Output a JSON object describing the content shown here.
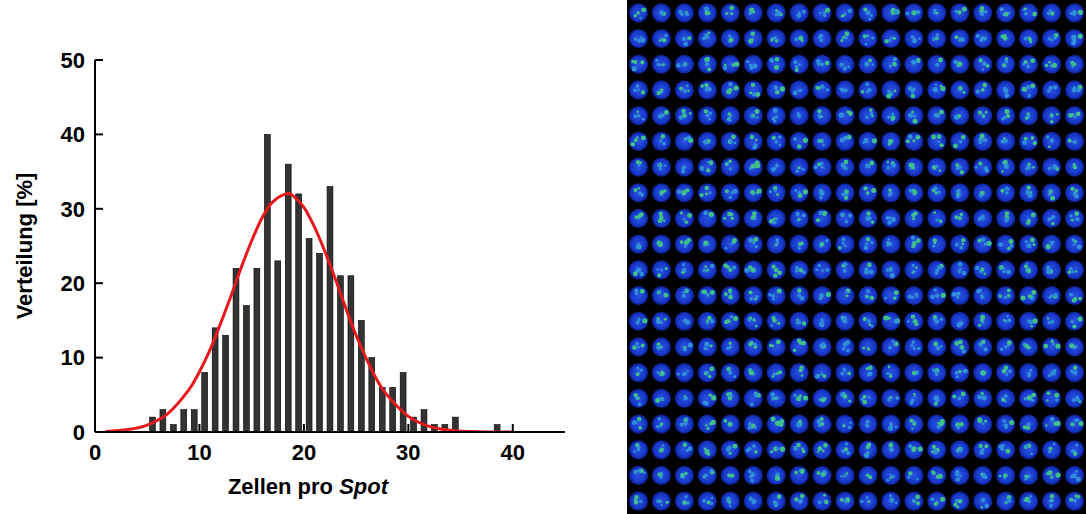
{
  "chart_data": {
    "type": "histogram",
    "x_label": "Zellen pro Spot",
    "y_label": "Verteilung [%]",
    "bins": [
      5,
      6,
      7,
      8,
      9,
      10,
      11,
      12,
      13,
      14,
      15,
      16,
      17,
      18,
      19,
      20,
      21,
      22,
      23,
      24,
      25,
      26,
      27,
      28,
      29,
      30,
      31,
      32,
      33,
      34,
      35,
      36,
      37,
      38,
      39
    ],
    "values": [
      2,
      3,
      1,
      3,
      3,
      8,
      14,
      13,
      22,
      17,
      22,
      40,
      23,
      36,
      32,
      26,
      24,
      33,
      21,
      21,
      15,
      10,
      6,
      6,
      8,
      2,
      3,
      1,
      1,
      2,
      0,
      0,
      0,
      1
    ],
    "color": "#333333",
    "xlim": [
      0,
      45
    ],
    "ylim": [
      0,
      50
    ],
    "xticks": [
      0,
      10,
      20,
      30,
      40
    ],
    "yticks": [
      0,
      10,
      20,
      30,
      40,
      50
    ],
    "fit": {
      "type": "line",
      "color": "#e41a1c",
      "x": [
        1,
        3,
        5,
        7,
        9,
        10,
        11,
        12,
        13,
        14,
        15,
        16,
        17,
        18.3,
        19,
        20,
        21,
        22,
        23,
        24,
        25,
        26,
        27,
        28,
        30,
        32,
        34,
        36,
        38,
        40
      ],
      "values": [
        0.08,
        0.3,
        0.93,
        2.5,
        5.7,
        8.1,
        11.0,
        14.5,
        18.2,
        22.1,
        25.7,
        28.8,
        30.9,
        32,
        31.7,
        30.2,
        27.6,
        24.3,
        20.6,
        16.7,
        13.0,
        9.8,
        7.0,
        4.9,
        2.1,
        0.75,
        0.23,
        0.06,
        0.01,
        0
      ]
    }
  }
}
